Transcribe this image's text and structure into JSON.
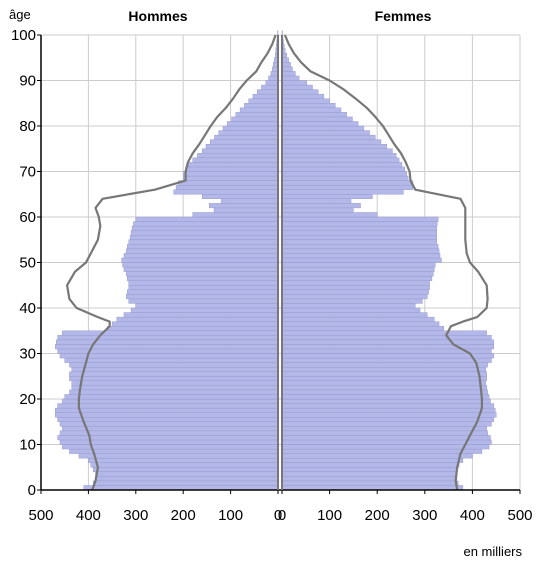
{
  "chart_data": {
    "type": "population-pyramid",
    "title": "",
    "left_header": "Hommes",
    "right_header": "Femmes",
    "y_axis_label": "âge",
    "x_unit_label": "en milliers",
    "age_range": [
      0,
      100
    ],
    "y_ticks": [
      0,
      10,
      20,
      30,
      40,
      50,
      60,
      70,
      80,
      90,
      100
    ],
    "x_ticks_left": [
      500,
      400,
      300,
      200,
      100,
      0
    ],
    "x_ticks_right": [
      0,
      100,
      200,
      300,
      400,
      500
    ],
    "x_max": 500,
    "grid": true,
    "colors": {
      "bar_fill": "#b4b8e8",
      "bar_stroke": "#8f94c8",
      "outline": "#777777",
      "grid": "#cccccc"
    },
    "bars": {
      "ages": [
        0,
        1,
        2,
        3,
        4,
        5,
        6,
        7,
        8,
        9,
        10,
        11,
        12,
        13,
        14,
        15,
        16,
        17,
        18,
        19,
        20,
        21,
        22,
        23,
        24,
        25,
        26,
        27,
        28,
        29,
        30,
        31,
        32,
        33,
        34,
        35,
        36,
        37,
        38,
        39,
        40,
        41,
        42,
        43,
        44,
        45,
        46,
        47,
        48,
        49,
        50,
        51,
        52,
        53,
        54,
        55,
        56,
        57,
        58,
        59,
        60,
        61,
        62,
        63,
        64,
        65,
        66,
        67,
        68,
        69,
        70,
        71,
        72,
        73,
        74,
        75,
        76,
        77,
        78,
        79,
        80,
        81,
        82,
        83,
        84,
        85,
        86,
        87,
        88,
        89,
        90,
        91,
        92,
        93,
        94,
        95,
        96,
        97,
        98,
        99,
        100
      ],
      "hommes": [
        410,
        390,
        385,
        385,
        390,
        395,
        400,
        420,
        440,
        455,
        460,
        465,
        460,
        455,
        460,
        465,
        470,
        470,
        465,
        455,
        450,
        440,
        435,
        435,
        440,
        440,
        435,
        440,
        450,
        460,
        465,
        470,
        468,
        465,
        455,
        360,
        350,
        340,
        325,
        310,
        300,
        315,
        320,
        318,
        315,
        315,
        318,
        320,
        325,
        328,
        330,
        325,
        320,
        318,
        315,
        312,
        310,
        308,
        305,
        300,
        180,
        135,
        145,
        120,
        160,
        220,
        215,
        210,
        200,
        200,
        195,
        190,
        180,
        170,
        160,
        152,
        143,
        134,
        125,
        116,
        107,
        98,
        89,
        80,
        71,
        62,
        53,
        44,
        35,
        26,
        20,
        15,
        12,
        10,
        8,
        6,
        5,
        4,
        3,
        2,
        1
      ],
      "femmes": [
        380,
        370,
        365,
        365,
        368,
        372,
        380,
        400,
        420,
        435,
        440,
        438,
        432,
        430,
        440,
        445,
        450,
        448,
        445,
        438,
        435,
        432,
        430,
        428,
        430,
        430,
        428,
        432,
        440,
        445,
        440,
        445,
        445,
        440,
        430,
        340,
        330,
        320,
        305,
        290,
        280,
        295,
        305,
        308,
        310,
        310,
        315,
        318,
        320,
        322,
        335,
        332,
        330,
        328,
        325,
        325,
        325,
        325,
        326,
        328,
        200,
        150,
        165,
        145,
        190,
        255,
        275,
        275,
        265,
        262,
        258,
        252,
        246,
        240,
        232,
        220,
        208,
        196,
        184,
        172,
        160,
        148,
        136,
        124,
        112,
        100,
        88,
        76,
        64,
        52,
        36,
        28,
        22,
        18,
        14,
        10,
        7,
        5,
        3,
        2,
        1
      ]
    },
    "outline": {
      "ages": [
        0,
        2,
        5,
        8,
        10,
        12,
        15,
        18,
        20,
        22,
        25,
        28,
        30,
        32,
        34,
        36,
        37,
        38,
        40,
        42,
        45,
        48,
        50,
        52,
        55,
        58,
        60,
        62,
        64,
        66,
        68,
        70,
        72,
        74,
        76,
        78,
        80,
        82,
        84,
        86,
        88,
        90,
        92,
        94,
        96,
        98,
        100
      ],
      "hommes": [
        392,
        385,
        380,
        388,
        395,
        398,
        410,
        420,
        420,
        418,
        413,
        405,
        400,
        390,
        375,
        355,
        355,
        380,
        425,
        440,
        445,
        428,
        405,
        395,
        380,
        375,
        378,
        385,
        370,
        260,
        195,
        195,
        190,
        180,
        166,
        154,
        142,
        128,
        110,
        95,
        82,
        66,
        46,
        35,
        22,
        12,
        5
      ],
      "femmes": [
        368,
        365,
        368,
        375,
        385,
        395,
        410,
        420,
        420,
        418,
        415,
        408,
        395,
        360,
        345,
        355,
        380,
        410,
        430,
        432,
        430,
        412,
        395,
        388,
        385,
        385,
        385,
        385,
        375,
        280,
        270,
        268,
        260,
        250,
        236,
        224,
        212,
        196,
        178,
        155,
        130,
        100,
        60,
        40,
        25,
        14,
        6
      ]
    }
  }
}
